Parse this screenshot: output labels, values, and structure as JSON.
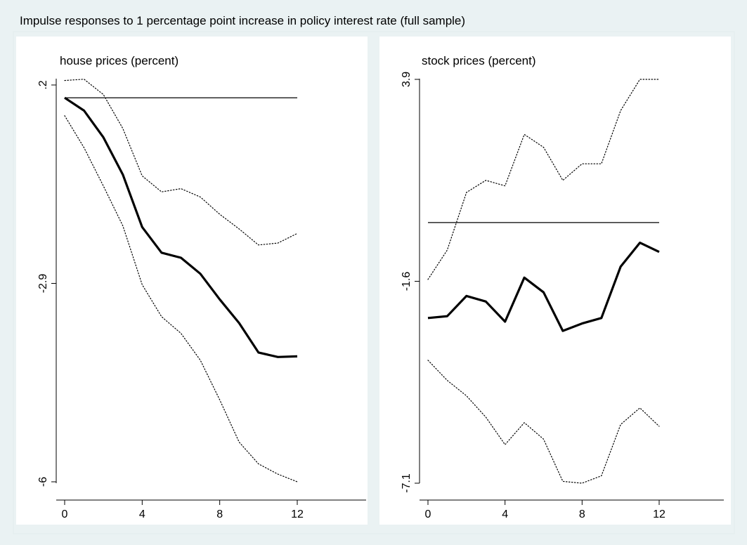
{
  "figure": {
    "title": "Impulse responses to 1 percentage point increase in policy interest rate (full sample)"
  },
  "chart_data": [
    {
      "type": "line",
      "title": "house prices (percent)",
      "x": [
        0,
        1,
        2,
        3,
        4,
        5,
        6,
        7,
        8,
        9,
        10,
        11,
        12
      ],
      "xticks": [
        "0",
        "4",
        "8",
        "12"
      ],
      "xlim": [
        -0.5,
        15.2
      ],
      "yticks": [
        ".2",
        "-2.9",
        "-6"
      ],
      "ylim": [
        -6,
        0.2
      ],
      "zero_line": 0,
      "series": [
        {
          "values": [
            0,
            -0.2,
            -0.62,
            -1.2,
            -2.02,
            -2.42,
            -2.5,
            -2.75,
            -3.15,
            -3.52,
            -3.98,
            -4.05,
            -4.04
          ],
          "style": "solid-thick"
        },
        {
          "values": [
            0.27,
            0.29,
            0.05,
            -0.48,
            -1.22,
            -1.47,
            -1.42,
            -1.55,
            -1.82,
            -2.05,
            -2.3,
            -2.27,
            -2.12
          ],
          "style": "dotted"
        },
        {
          "values": [
            -0.28,
            -0.78,
            -1.38,
            -2.0,
            -2.92,
            -3.42,
            -3.68,
            -4.1,
            -4.72,
            -5.38,
            -5.72,
            -5.88,
            -6.0
          ],
          "style": "dotted"
        }
      ],
      "grid": false,
      "colors": {
        "line": "#000000",
        "plot_bg": "#ffffff"
      }
    },
    {
      "type": "line",
      "title": "stock prices (percent)",
      "x": [
        0,
        1,
        2,
        3,
        4,
        5,
        6,
        7,
        8,
        9,
        10,
        11,
        12
      ],
      "xticks": [
        "0",
        "4",
        "8",
        "12"
      ],
      "xlim": [
        -0.2,
        14.7
      ],
      "yticks": [
        "3.9",
        "-1.6",
        "-7.1"
      ],
      "ylim": [
        -7.1,
        3.9
      ],
      "zero_line": 0,
      "series": [
        {
          "values": [
            -2.6,
            -2.55,
            -2.0,
            -2.15,
            -2.7,
            -1.5,
            -1.9,
            -2.95,
            -2.75,
            -2.6,
            -1.2,
            -0.55,
            -0.8
          ],
          "style": "solid-thick"
        },
        {
          "values": [
            -1.55,
            -0.75,
            0.82,
            1.15,
            1.0,
            2.4,
            2.05,
            1.15,
            1.6,
            1.6,
            3.05,
            3.9,
            3.9
          ],
          "style": "dotted"
        },
        {
          "values": [
            -3.75,
            -4.3,
            -4.72,
            -5.3,
            -6.05,
            -5.45,
            -5.9,
            -7.05,
            -7.1,
            -6.9,
            -5.5,
            -5.05,
            -5.55
          ],
          "style": "dotted"
        }
      ],
      "grid": false,
      "colors": {
        "line": "#000000",
        "plot_bg": "#ffffff"
      }
    }
  ]
}
